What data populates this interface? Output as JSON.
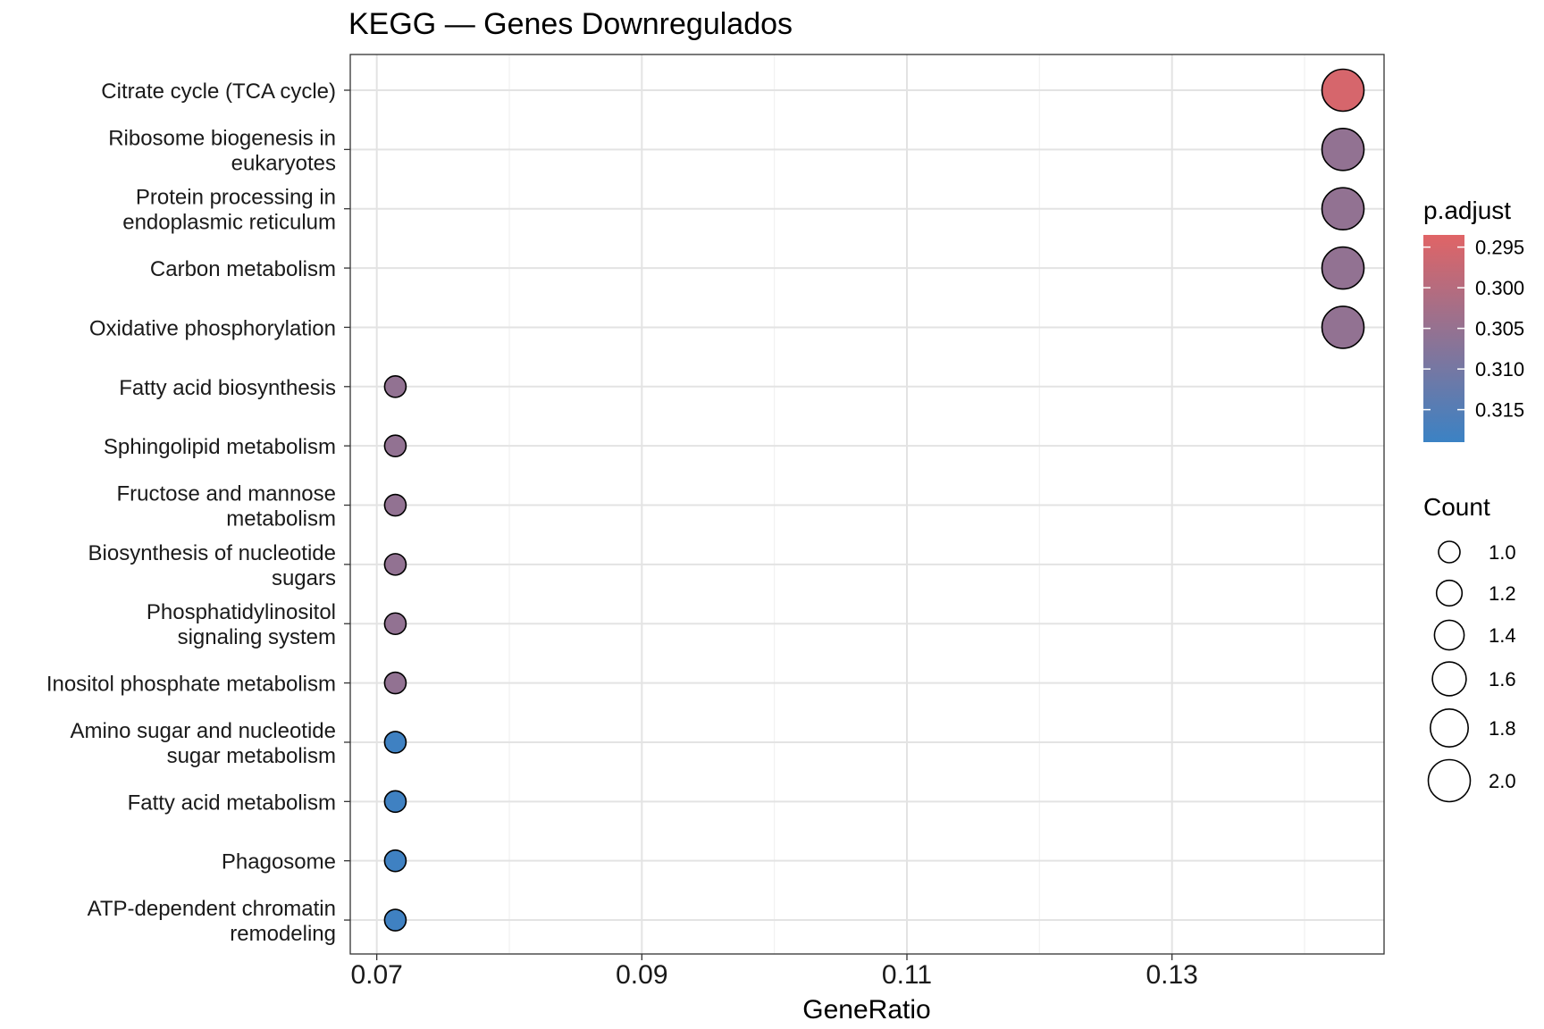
{
  "chart_data": {
    "type": "scatter",
    "title": "KEGG — Genes Downregulados",
    "xlabel": "GeneRatio",
    "ylabel": "",
    "xlim": [
      0.068,
      0.146
    ],
    "x_ticks": [
      "0.07",
      "0.09",
      "0.11",
      "0.13"
    ],
    "grid": true,
    "points": [
      {
        "term": [
          "Citrate cycle (TCA cycle)"
        ],
        "gene_ratio": 0.1429,
        "count": 2,
        "p_adjust": 0.295
      },
      {
        "term": [
          "Ribosome biogenesis in",
          "eukaryotes"
        ],
        "gene_ratio": 0.1429,
        "count": 2,
        "p_adjust": 0.3055
      },
      {
        "term": [
          "Protein processing in",
          "endoplasmic reticulum"
        ],
        "gene_ratio": 0.1429,
        "count": 2,
        "p_adjust": 0.3055
      },
      {
        "term": [
          "Carbon metabolism"
        ],
        "gene_ratio": 0.1429,
        "count": 2,
        "p_adjust": 0.3055
      },
      {
        "term": [
          "Oxidative phosphorylation"
        ],
        "gene_ratio": 0.1429,
        "count": 2,
        "p_adjust": 0.3055
      },
      {
        "term": [
          "Fatty acid biosynthesis"
        ],
        "gene_ratio": 0.0714,
        "count": 1,
        "p_adjust": 0.3055
      },
      {
        "term": [
          "Sphingolipid metabolism"
        ],
        "gene_ratio": 0.0714,
        "count": 1,
        "p_adjust": 0.3055
      },
      {
        "term": [
          "Fructose and mannose",
          "metabolism"
        ],
        "gene_ratio": 0.0714,
        "count": 1,
        "p_adjust": 0.3055
      },
      {
        "term": [
          "Biosynthesis of nucleotide",
          "sugars"
        ],
        "gene_ratio": 0.0714,
        "count": 1,
        "p_adjust": 0.3055
      },
      {
        "term": [
          "Phosphatidylinositol",
          "signaling system"
        ],
        "gene_ratio": 0.0714,
        "count": 1,
        "p_adjust": 0.3055
      },
      {
        "term": [
          "Inositol phosphate metabolism"
        ],
        "gene_ratio": 0.0714,
        "count": 1,
        "p_adjust": 0.3055
      },
      {
        "term": [
          "Amino sugar and nucleotide",
          "sugar metabolism"
        ],
        "gene_ratio": 0.0714,
        "count": 1,
        "p_adjust": 0.3184
      },
      {
        "term": [
          "Fatty acid metabolism"
        ],
        "gene_ratio": 0.0714,
        "count": 1,
        "p_adjust": 0.3184
      },
      {
        "term": [
          "Phagosome"
        ],
        "gene_ratio": 0.0714,
        "count": 1,
        "p_adjust": 0.3184
      },
      {
        "term": [
          "ATP-dependent chromatin",
          "remodeling"
        ],
        "gene_ratio": 0.0714,
        "count": 1,
        "p_adjust": 0.3184
      }
    ],
    "color_legend": {
      "title": "p.adjust",
      "range": [
        0.2935,
        0.319
      ],
      "ticks": [
        "0.295",
        "0.300",
        "0.305",
        "0.310",
        "0.315"
      ],
      "low_color": "#e06466",
      "high_color": "#3b82c4"
    },
    "size_legend": {
      "title": "Count",
      "range": [
        1.0,
        2.0
      ],
      "labels": [
        "1.0",
        "1.2",
        "1.4",
        "1.6",
        "1.8",
        "2.0"
      ]
    }
  }
}
